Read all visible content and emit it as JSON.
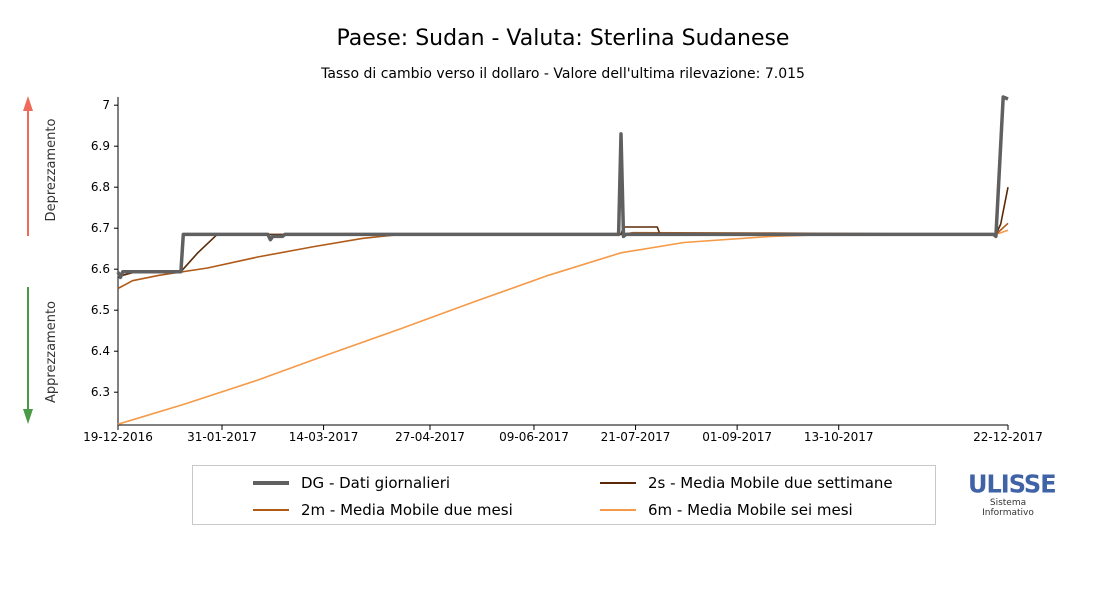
{
  "title": "Paese: Sudan - Valuta: Sterlina Sudanese",
  "subtitle": "Tasso di cambio verso il dollaro - Valore dell'ultima rilevazione: 7.015",
  "side_labels": {
    "top": "Deprezzamento",
    "bottom": "Apprezzamento"
  },
  "colors": {
    "dg": "#606060",
    "ma2s": "#5a2a08",
    "ma2m": "#b05a18",
    "ma6m": "#f59a48",
    "arrow_up": "#f06a5a",
    "arrow_down": "#4a9a48"
  },
  "legend": [
    {
      "label": "DG - Dati giornalieri",
      "series": "dg"
    },
    {
      "label": "2s - Media Mobile due settimane",
      "series": "ma2s"
    },
    {
      "label": "2m - Media Mobile due mesi",
      "series": "ma2m"
    },
    {
      "label": "6m - Media Mobile sei mesi",
      "series": "ma6m"
    }
  ],
  "logo": {
    "name": "ULISSE",
    "line1": "Sistema",
    "line2": "Informativo"
  },
  "chart_data": {
    "type": "line",
    "title": "Paese: Sudan - Valuta: Sterlina Sudanese",
    "subtitle": "Tasso di cambio verso il dollaro - Valore dell'ultima rilevazione: 7.015",
    "x_range": [
      "2016-12-19",
      "2017-12-22"
    ],
    "y_range": [
      6.22,
      7.02
    ],
    "x_ticks": [
      "19-12-2016",
      "31-01-2017",
      "14-03-2017",
      "27-04-2017",
      "09-06-2017",
      "21-07-2017",
      "01-09-2017",
      "13-10-2017",
      "22-12-2017"
    ],
    "y_ticks": [
      6.3,
      6.4,
      6.5,
      6.6,
      6.7,
      6.8,
      6.9,
      7
    ],
    "grid": false,
    "legend_position": "bottom",
    "series": [
      {
        "name": "DG - Dati giornalieri",
        "key": "dg",
        "points": [
          [
            "2016-12-19",
            6.593
          ],
          [
            "2016-12-20",
            6.58
          ],
          [
            "2016-12-21",
            6.594
          ],
          [
            "2017-01-14",
            6.594
          ],
          [
            "2017-01-15",
            6.685
          ],
          [
            "2017-02-19",
            6.685
          ],
          [
            "2017-02-20",
            6.672
          ],
          [
            "2017-02-21",
            6.68
          ],
          [
            "2017-02-25",
            6.68
          ],
          [
            "2017-02-26",
            6.685
          ],
          [
            "2017-07-14",
            6.685
          ],
          [
            "2017-07-15",
            6.93
          ],
          [
            "2017-07-16",
            6.68
          ],
          [
            "2017-07-17",
            6.685
          ],
          [
            "2017-12-16",
            6.685
          ],
          [
            "2017-12-17",
            6.68
          ],
          [
            "2017-12-20",
            7.02
          ],
          [
            "2017-12-22",
            7.015
          ]
        ]
      },
      {
        "name": "2s - Media Mobile due settimane",
        "key": "ma2s",
        "points": [
          [
            "2016-12-19",
            6.593
          ],
          [
            "2016-12-21",
            6.585
          ],
          [
            "2016-12-26",
            6.593
          ],
          [
            "2017-01-14",
            6.594
          ],
          [
            "2017-01-21",
            6.64
          ],
          [
            "2017-01-29",
            6.685
          ],
          [
            "2017-07-15",
            6.685
          ],
          [
            "2017-07-16",
            6.703
          ],
          [
            "2017-07-30",
            6.703
          ],
          [
            "2017-07-31",
            6.687
          ],
          [
            "2017-12-17",
            6.685
          ],
          [
            "2017-12-19",
            6.71
          ],
          [
            "2017-12-22",
            6.8
          ]
        ]
      },
      {
        "name": "2m - Media Mobile due mesi",
        "key": "ma2m",
        "points": [
          [
            "2016-12-19",
            6.553
          ],
          [
            "2016-12-25",
            6.572
          ],
          [
            "2017-01-05",
            6.585
          ],
          [
            "2017-01-25",
            6.603
          ],
          [
            "2017-02-15",
            6.63
          ],
          [
            "2017-03-10",
            6.655
          ],
          [
            "2017-03-30",
            6.675
          ],
          [
            "2017-04-15",
            6.685
          ],
          [
            "2017-07-15",
            6.685
          ],
          [
            "2017-07-20",
            6.689
          ],
          [
            "2017-09-15",
            6.688
          ],
          [
            "2017-12-17",
            6.685
          ],
          [
            "2017-12-22",
            6.712
          ]
        ]
      },
      {
        "name": "6m - Media Mobile sei mesi",
        "key": "ma6m",
        "points": [
          [
            "2016-12-19",
            6.222
          ],
          [
            "2017-01-15",
            6.27
          ],
          [
            "2017-02-15",
            6.33
          ],
          [
            "2017-03-15",
            6.39
          ],
          [
            "2017-04-15",
            6.455
          ],
          [
            "2017-05-15",
            6.52
          ],
          [
            "2017-06-15",
            6.585
          ],
          [
            "2017-07-15",
            6.64
          ],
          [
            "2017-08-10",
            6.665
          ],
          [
            "2017-09-15",
            6.68
          ],
          [
            "2017-10-10",
            6.685
          ],
          [
            "2017-12-17",
            6.685
          ],
          [
            "2017-12-22",
            6.695
          ]
        ]
      }
    ]
  }
}
